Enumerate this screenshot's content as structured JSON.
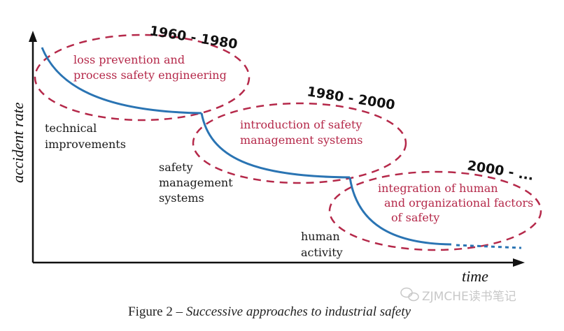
{
  "figure": {
    "axes": {
      "y_label": "accident rate",
      "x_label": "time"
    },
    "phases": [
      {
        "period": "1960 - 1980",
        "approach": [
          "loss prevention and",
          "process safety engineering"
        ],
        "driver": [
          "technical",
          "improvements"
        ]
      },
      {
        "period": "1980 - 2000",
        "approach": [
          "introduction of safety",
          "management systems"
        ],
        "driver": [
          "safety",
          "management",
          "systems"
        ]
      },
      {
        "period": "2000 - ...",
        "approach": [
          "integration of human",
          "and organizational factors",
          "of safety"
        ],
        "driver": [
          "human",
          "activity"
        ]
      }
    ],
    "caption": {
      "prefix": "Figure 2 – ",
      "text": "Successive approaches to industrial safety"
    },
    "watermark": "ZJMCHE读书笔记",
    "colors": {
      "curve": "#2a74b3",
      "ellipse": "#b5294a",
      "approach_text": "#b5294a",
      "axis": "#111111"
    }
  }
}
